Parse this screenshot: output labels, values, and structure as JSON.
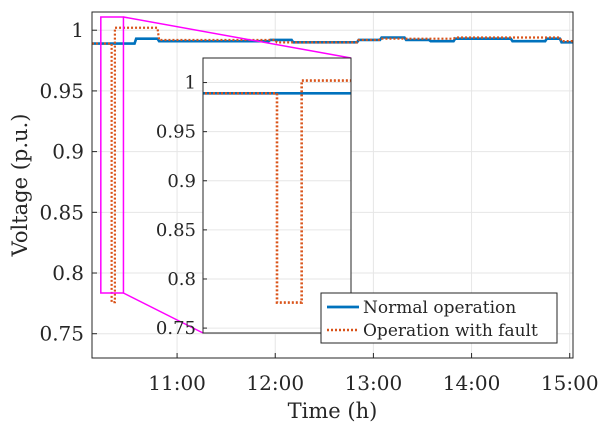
{
  "chart_data": {
    "type": "line",
    "xlabel": "Time (h)",
    "ylabel": "Voltage (p.u.)",
    "xlim": [
      "10:08",
      "15:02"
    ],
    "ylim": [
      0.73,
      1.015
    ],
    "x_ticks": [
      "11:00",
      "12:00",
      "13:00",
      "14:00",
      "15:00"
    ],
    "y_ticks": [
      "0.75",
      "0.8",
      "0.85",
      "0.9",
      "0.95",
      "1"
    ],
    "grid": true,
    "legend_position": "bottom-right",
    "series": [
      {
        "name": "Normal operation",
        "color": "#0072BD",
        "style": "solid",
        "points": [
          [
            "10:08",
            0.989
          ],
          [
            "10:34",
            0.989
          ],
          [
            "10:35",
            0.993
          ],
          [
            "10:48",
            0.993
          ],
          [
            "10:49",
            0.991
          ],
          [
            "11:56",
            0.991
          ],
          [
            "11:57",
            0.992
          ],
          [
            "12:10",
            0.992
          ],
          [
            "12:11",
            0.99
          ],
          [
            "12:50",
            0.99
          ],
          [
            "12:51",
            0.992
          ],
          [
            "13:04",
            0.992
          ],
          [
            "13:05",
            0.994
          ],
          [
            "13:19",
            0.994
          ],
          [
            "13:20",
            0.992
          ],
          [
            "13:34",
            0.992
          ],
          [
            "13:35",
            0.991
          ],
          [
            "13:49",
            0.991
          ],
          [
            "13:50",
            0.993
          ],
          [
            "14:24",
            0.993
          ],
          [
            "14:25",
            0.991
          ],
          [
            "14:45",
            0.991
          ],
          [
            "14:46",
            0.993
          ],
          [
            "14:54",
            0.993
          ],
          [
            "14:55",
            0.99
          ],
          [
            "15:02",
            0.99
          ]
        ]
      },
      {
        "name": "Operation with fault",
        "color": "#D95319",
        "style": "dotted",
        "points": [
          [
            "10:08",
            0.989
          ],
          [
            "10:20",
            0.989
          ],
          [
            "10:20",
            0.776
          ],
          [
            "10:22",
            0.776
          ],
          [
            "10:22",
            1.002
          ],
          [
            "10:48",
            1.002
          ],
          [
            "10:49",
            0.992
          ],
          [
            "12:00",
            0.992
          ],
          [
            "12:01",
            0.99
          ],
          [
            "12:50",
            0.99
          ],
          [
            "12:51",
            0.992
          ],
          [
            "13:04",
            0.992
          ],
          [
            "13:05",
            0.993
          ],
          [
            "13:49",
            0.993
          ],
          [
            "13:50",
            0.994
          ],
          [
            "14:54",
            0.994
          ],
          [
            "14:55",
            0.991
          ],
          [
            "15:02",
            0.991
          ]
        ]
      }
    ],
    "inset": {
      "x_range": [
        "10:14",
        "10:26"
      ],
      "ylim": [
        0.745,
        1.025
      ],
      "y_ticks": [
        "0.75",
        "0.8",
        "0.85",
        "0.9",
        "0.95",
        "1"
      ],
      "frame_color": "#FF00FF"
    }
  }
}
